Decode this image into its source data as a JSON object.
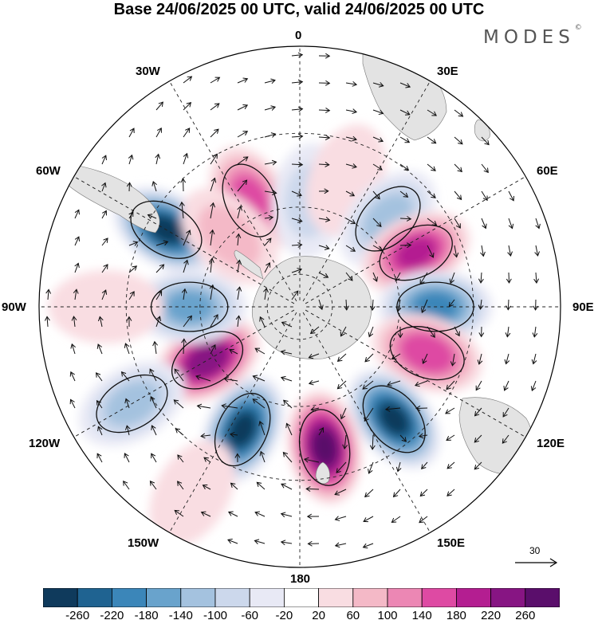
{
  "title": "Base 24/06/2025 00 UTC, valid 24/06/2025 00 UTC",
  "logo": "MODES",
  "logo_mark": "©",
  "longitude_labels": [
    "0",
    "30E",
    "60E",
    "90E",
    "120E",
    "150E",
    "180",
    "150W",
    "120W",
    "90W",
    "60W",
    "30W"
  ],
  "reference_vector": "30",
  "colorbar": {
    "ticks": [
      "-260",
      "-220",
      "-180",
      "-140",
      "-100",
      "-60",
      "-20",
      "20",
      "60",
      "100",
      "140",
      "180",
      "220",
      "260"
    ],
    "colors": [
      "#0f3a5c",
      "#1f6391",
      "#3b86b9",
      "#69a3cc",
      "#a4c2df",
      "#ccd8ec",
      "#e8e9f5",
      "#ffffff",
      "#f9dde2",
      "#f4b9c7",
      "#ec87b4",
      "#de4aa3",
      "#b41e91",
      "#871583",
      "#5a0e6b"
    ]
  },
  "chart_data": {
    "type": "heatmap",
    "projection": "south-polar-stereographic",
    "field": "anomaly (shaded) with wind vectors",
    "levels": [
      -260,
      -220,
      -180,
      -140,
      -100,
      -60,
      -20,
      20,
      60,
      100,
      140,
      180,
      220,
      260
    ],
    "centers": [
      {
        "lon": -25,
        "lat": -55,
        "value": 150
      },
      {
        "lon": 5,
        "lat": -58,
        "value": -60
      },
      {
        "lon": 20,
        "lat": -50,
        "value": 40
      },
      {
        "lon": 45,
        "lat": -53,
        "value": -100
      },
      {
        "lon": -60,
        "lat": -45,
        "value": -260
      },
      {
        "lon": -45,
        "lat": -60,
        "value": 60
      },
      {
        "lon": 65,
        "lat": -52,
        "value": 180
      },
      {
        "lon": 90,
        "lat": -50,
        "value": -180
      },
      {
        "lon": 110,
        "lat": -50,
        "value": 160
      },
      {
        "lon": 140,
        "lat": -47,
        "value": -260
      },
      {
        "lon": 170,
        "lat": -48,
        "value": 260
      },
      {
        "lon": -155,
        "lat": -50,
        "value": -260
      },
      {
        "lon": -120,
        "lat": -58,
        "value": 240
      },
      {
        "lon": -90,
        "lat": -57,
        "value": -140
      },
      {
        "lon": -120,
        "lat": -35,
        "value": -100
      },
      {
        "lon": -90,
        "lat": -35,
        "value": 40
      },
      {
        "lon": -150,
        "lat": -30,
        "value": 40
      }
    ]
  }
}
